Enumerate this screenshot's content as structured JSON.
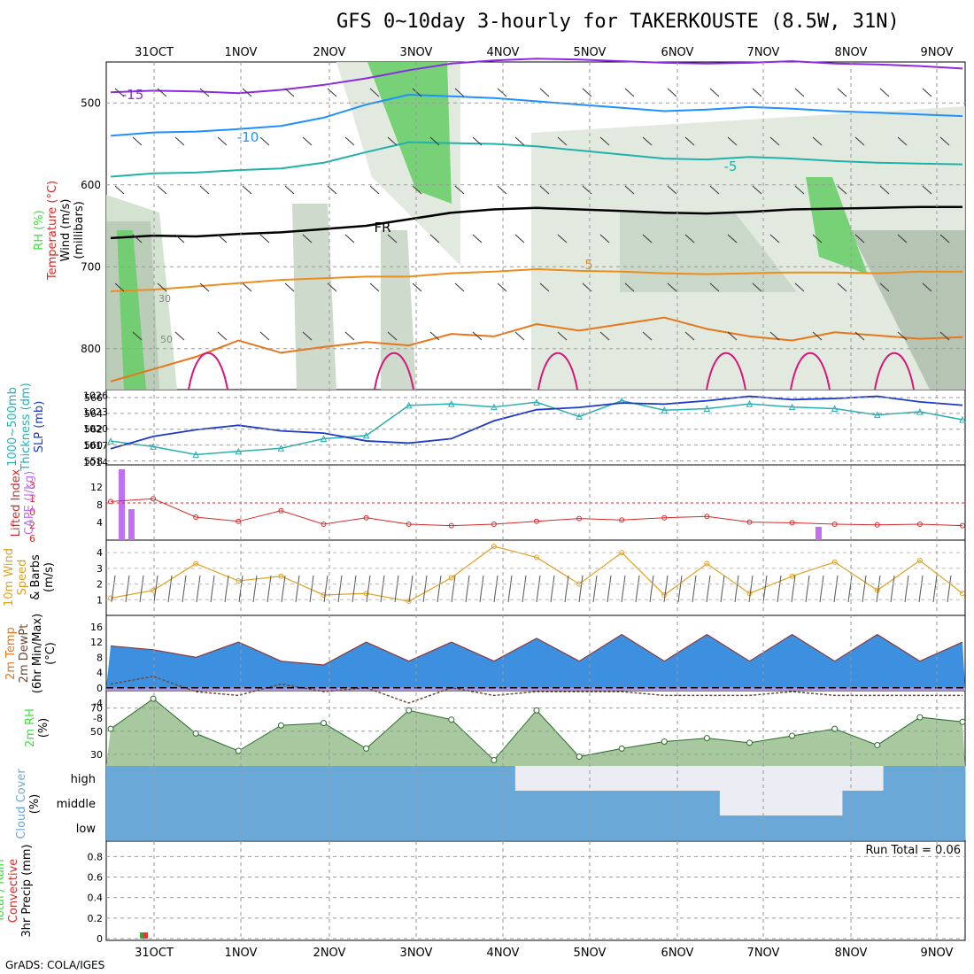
{
  "title": "GFS 0~10day 3-hourly for TAKERKOUSTE (8.5W, 31N)",
  "credit": "GrADS: COLA/IGES",
  "days": [
    "31OCT",
    "1NOV",
    "2NOV",
    "3NOV",
    "4NOV",
    "5NOV",
    "6NOV",
    "7NOV",
    "8NOV",
    "9NOV"
  ],
  "panel_labels": {
    "upper": [
      "RH (%)",
      "Temperature (°C)",
      "Wind (m/s)",
      "(millibars)"
    ],
    "thickness": [
      "1000~500mb",
      "Thickness (dm)",
      "SLP (mb)"
    ],
    "lifted": [
      "Lifted Index",
      "CAPE (J/kg)"
    ],
    "wind": [
      "10m Wind",
      "Speed",
      "& Barbs",
      "(m/s)"
    ],
    "temp": [
      "2m Temp",
      "2m DewPt",
      "(6hr Min/Max)",
      "(°C)"
    ],
    "rh": [
      "2m RH",
      "(%)"
    ],
    "cloud": [
      "Cloud Cover",
      "(%)"
    ],
    "precip": [
      "Total / Rain",
      "Convective",
      "3hr Precip (mm)"
    ]
  },
  "run_total": "Run Total = 0.06",
  "colors": {
    "purple": "#8a2be2",
    "blue": "#1e90ff",
    "cyan": "#20b2aa",
    "orange": "#ee8c1e",
    "red_orange": "#e8761a",
    "magenta": "#d6147a",
    "slp": "#1c39c8",
    "thickness": "#28b0b0",
    "lifted": "#d62828",
    "cape": "#c070f0",
    "wind_speed": "#e0a020",
    "cloud": "#6aa8d8",
    "rh_green": "#3ce03c"
  },
  "chart_data": [
    {
      "type": "line",
      "panel": "upper-air",
      "ylabel": "millibars",
      "yticks": [
        500,
        600,
        700,
        800
      ],
      "ylim": [
        850,
        450
      ],
      "isotherm_labels": [
        "-15",
        "-10",
        "-5",
        "5",
        "FR"
      ],
      "rh_labels": [
        "30",
        "50"
      ],
      "series": [
        {
          "name": "-15",
          "values": [
            487,
            485,
            486,
            488,
            484,
            478,
            470,
            460,
            452,
            448,
            446,
            447,
            449,
            451,
            452,
            451,
            449,
            452,
            453,
            455,
            458
          ]
        },
        {
          "name": "-10",
          "values": [
            540,
            536,
            535,
            532,
            528,
            518,
            502,
            490,
            492,
            494,
            498,
            502,
            506,
            510,
            508,
            505,
            507,
            510,
            512,
            514,
            516
          ]
        },
        {
          "name": "-5",
          "values": [
            590,
            586,
            585,
            582,
            580,
            573,
            560,
            548,
            549,
            550,
            553,
            558,
            563,
            568,
            569,
            566,
            568,
            571,
            573,
            574,
            575
          ]
        },
        {
          "name": "FR",
          "values": [
            665,
            662,
            663,
            660,
            658,
            654,
            650,
            642,
            634,
            630,
            628,
            630,
            632,
            634,
            635,
            633,
            630,
            629,
            628,
            627,
            627
          ]
        },
        {
          "name": "5",
          "values": [
            730,
            728,
            724,
            720,
            716,
            714,
            712,
            712,
            708,
            706,
            703,
            705,
            706,
            708,
            709,
            708,
            707,
            707,
            708,
            706,
            706
          ]
        },
        {
          "name": "5b",
          "values": [
            840,
            825,
            810,
            790,
            805,
            798,
            792,
            796,
            782,
            785,
            770,
            778,
            770,
            762,
            776,
            785,
            790,
            780,
            784,
            788,
            786
          ]
        }
      ]
    },
    {
      "type": "line",
      "panel": "thickness-slp",
      "x": [
        "30OCT21",
        "31OCT00",
        "31OCT12",
        "1NOV00",
        "1NOV12",
        "2NOV00",
        "2NOV12",
        "3NOV00",
        "3NOV12",
        "4NOV00",
        "4NOV12",
        "5NOV00",
        "5NOV12",
        "6NOV00",
        "6NOV12",
        "7NOV00",
        "7NOV12",
        "8NOV00",
        "8NOV12",
        "9NOV00",
        "9NOV12"
      ],
      "series": [
        {
          "name": "1000~500mb Thickness (dm)",
          "values": [
            560.5,
            559.8,
            558.8,
            559.2,
            559.6,
            560.8,
            561.2,
            565,
            565.2,
            564.8,
            565.4,
            563.6,
            565.6,
            564.4,
            564.6,
            565.2,
            564.8,
            564.6,
            563.8,
            564.2,
            563.2
          ]
        },
        {
          "name": "SLP (mb)",
          "values": [
            1016.4,
            1018.6,
            1019.8,
            1020.6,
            1019.6,
            1019.2,
            1017.8,
            1017.4,
            1018.2,
            1021.4,
            1023.4,
            1023.8,
            1024.6,
            1024.4,
            1025.0,
            1025.8,
            1025.2,
            1025.4,
            1025.8,
            1024.8,
            1024.2
          ]
        }
      ],
      "yticks_left": [
        558,
        560,
        562,
        564,
        566
      ],
      "yticks_right": [
        1014,
        1017,
        1020,
        1023,
        1026
      ]
    },
    {
      "type": "bar",
      "panel": "lifted-index-cape",
      "ylabel": "CAPE (J/kg)",
      "yticks_cape": [
        4,
        8,
        12
      ],
      "yticks_li": [
        "-3",
        "-1",
        "0",
        "2",
        "6"
      ],
      "cape_bars": [
        {
          "x": "31OCT00",
          "value": 16
        },
        {
          "x": "31OCT06",
          "value": 7
        },
        {
          "x": "7NOV15",
          "value": 3
        }
      ],
      "lifted_index": [
        -0.2,
        -0.6,
        2.0,
        2.6,
        1.1,
        3.0,
        2.1,
        3.0,
        3.2,
        3.0,
        2.6,
        2.2,
        2.4,
        2.1,
        1.9,
        2.7,
        2.8,
        3.0,
        3.1,
        3.0,
        3.2
      ]
    },
    {
      "type": "line",
      "panel": "10m-wind",
      "ylabel": "m/s",
      "yticks": [
        1,
        2,
        3,
        4
      ],
      "values": [
        1.1,
        1.6,
        3.3,
        2.2,
        2.5,
        1.3,
        1.4,
        0.9,
        2.4,
        4.4,
        3.7,
        2.0,
        4.0,
        1.3,
        3.3,
        1.4,
        2.5,
        3.4,
        1.6,
        3.5,
        1.4
      ]
    },
    {
      "type": "area",
      "panel": "2m-temp",
      "ylabel": "°C",
      "yticks": [
        -8,
        -4,
        0,
        4,
        8,
        12,
        16
      ],
      "series": [
        {
          "name": "2m Temp",
          "values": [
            11,
            10,
            8,
            12,
            7,
            6,
            12,
            7,
            12,
            7,
            13,
            7,
            14,
            7,
            14,
            7,
            14,
            7,
            14,
            7,
            12
          ]
        },
        {
          "name": "2m DewPt",
          "values": [
            1,
            3,
            -1,
            -2,
            1,
            -1,
            0,
            -4,
            0,
            -2,
            -1,
            -1,
            -1,
            -2,
            -2,
            -2,
            -1,
            -2,
            -2,
            -2,
            -2
          ]
        }
      ]
    },
    {
      "type": "area",
      "panel": "2m-rh",
      "ylabel": "%",
      "yticks": [
        30,
        50,
        70
      ],
      "values": [
        52,
        78,
        48,
        33,
        55,
        57,
        35,
        68,
        60,
        25,
        68,
        28,
        35,
        41,
        44,
        40,
        46,
        52,
        38,
        62,
        58
      ]
    },
    {
      "type": "heatmap",
      "panel": "cloud-cover",
      "levels": [
        "high",
        "middle",
        "low"
      ],
      "values": [
        [
          100,
          100,
          100,
          100,
          100,
          100,
          100,
          100,
          100,
          100,
          40,
          0,
          0,
          0,
          0,
          0,
          0,
          20,
          40,
          100,
          80
        ],
        [
          100,
          100,
          100,
          100,
          100,
          100,
          100,
          100,
          100,
          100,
          100,
          100,
          100,
          100,
          100,
          0,
          0,
          0,
          60,
          100,
          100
        ],
        [
          100,
          80,
          100,
          100,
          100,
          100,
          100,
          100,
          100,
          100,
          100,
          100,
          100,
          100,
          100,
          100,
          100,
          100,
          100,
          100,
          100
        ]
      ]
    },
    {
      "type": "bar",
      "panel": "3hr-precip",
      "ylabel": "3hr Precip (mm)",
      "yticks": [
        0,
        0.2,
        0.4,
        0.6,
        0.8
      ],
      "ylim": [
        0,
        0.95
      ],
      "bars": [
        {
          "x": "31OCT00",
          "total": 0.06,
          "convective": 0.06
        }
      ]
    }
  ]
}
